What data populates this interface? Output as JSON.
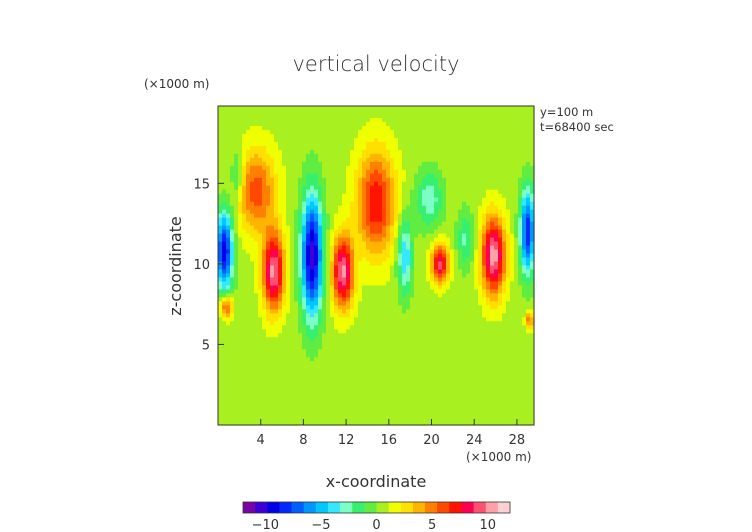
{
  "chart_data": {
    "type": "heatmap",
    "title": "vertical velocity",
    "xlabel": "x-coordinate",
    "ylabel": "z-coordinate",
    "x_unit": "(×1000 m)",
    "y_unit": "(×1000 m)",
    "annotations": [
      "y=100 m",
      "t=68400 sec"
    ],
    "xlim": [
      0,
      29.6
    ],
    "ylim": [
      0,
      19.8
    ],
    "x_ticks": [
      "4",
      "8",
      "12",
      "16",
      "20",
      "24",
      "28"
    ],
    "y_ticks": [
      "5",
      "10",
      "15"
    ],
    "colorbar": {
      "range": [
        -12,
        12
      ],
      "tick_labels": [
        "−10",
        "−5",
        "0",
        "5",
        "10"
      ],
      "tick_values": [
        -10,
        -5,
        0,
        5,
        10
      ],
      "colors": [
        "#7a00a8",
        "#3d00d6",
        "#0000e8",
        "#0028ff",
        "#0060ff",
        "#0096ff",
        "#00c8ff",
        "#34e8ff",
        "#7cffc4",
        "#38f070",
        "#60ec40",
        "#a8f020",
        "#f0ff00",
        "#ffe000",
        "#ffb400",
        "#ff8000",
        "#ff4800",
        "#ff1400",
        "#ff0050",
        "#ff5070",
        "#ffa0a8",
        "#ffd0d0"
      ]
    },
    "background_value": 0.6,
    "features": [
      {
        "x": 0.6,
        "z": 10.8,
        "sx": 0.8,
        "sz": 2.4,
        "amp": -10
      },
      {
        "x": 1.8,
        "z": 15.5,
        "sx": 0.6,
        "sz": 1.6,
        "amp": -3
      },
      {
        "x": 3.6,
        "z": 14.5,
        "sx": 1.8,
        "sz": 2.6,
        "amp": 5.5
      },
      {
        "x": 5.2,
        "z": 9.5,
        "sx": 1.0,
        "sz": 2.4,
        "amp": 9.5
      },
      {
        "x": 0.8,
        "z": 7.3,
        "sx": 0.6,
        "sz": 0.7,
        "amp": 6
      },
      {
        "x": 8.8,
        "z": 10.5,
        "sx": 1.0,
        "sz": 3.8,
        "amp": -11
      },
      {
        "x": 11.7,
        "z": 9.5,
        "sx": 1.0,
        "sz": 2.2,
        "amp": 9.5
      },
      {
        "x": 14.8,
        "z": 13.8,
        "sx": 1.8,
        "sz": 3.2,
        "amp": 7
      },
      {
        "x": 17.5,
        "z": 10.5,
        "sx": 0.7,
        "sz": 2.4,
        "amp": -5
      },
      {
        "x": 19.8,
        "z": 14.0,
        "sx": 1.3,
        "sz": 1.8,
        "amp": -3.5
      },
      {
        "x": 20.8,
        "z": 10.0,
        "sx": 0.8,
        "sz": 1.2,
        "amp": 8.5
      },
      {
        "x": 23.2,
        "z": 11.5,
        "sx": 0.8,
        "sz": 1.8,
        "amp": -3
      },
      {
        "x": 25.8,
        "z": 10.5,
        "sx": 1.1,
        "sz": 2.4,
        "amp": 10
      },
      {
        "x": 29.0,
        "z": 12.0,
        "sx": 0.7,
        "sz": 2.6,
        "amp": -9
      },
      {
        "x": 29.2,
        "z": 6.5,
        "sx": 0.4,
        "sz": 0.5,
        "amp": 5
      }
    ]
  }
}
